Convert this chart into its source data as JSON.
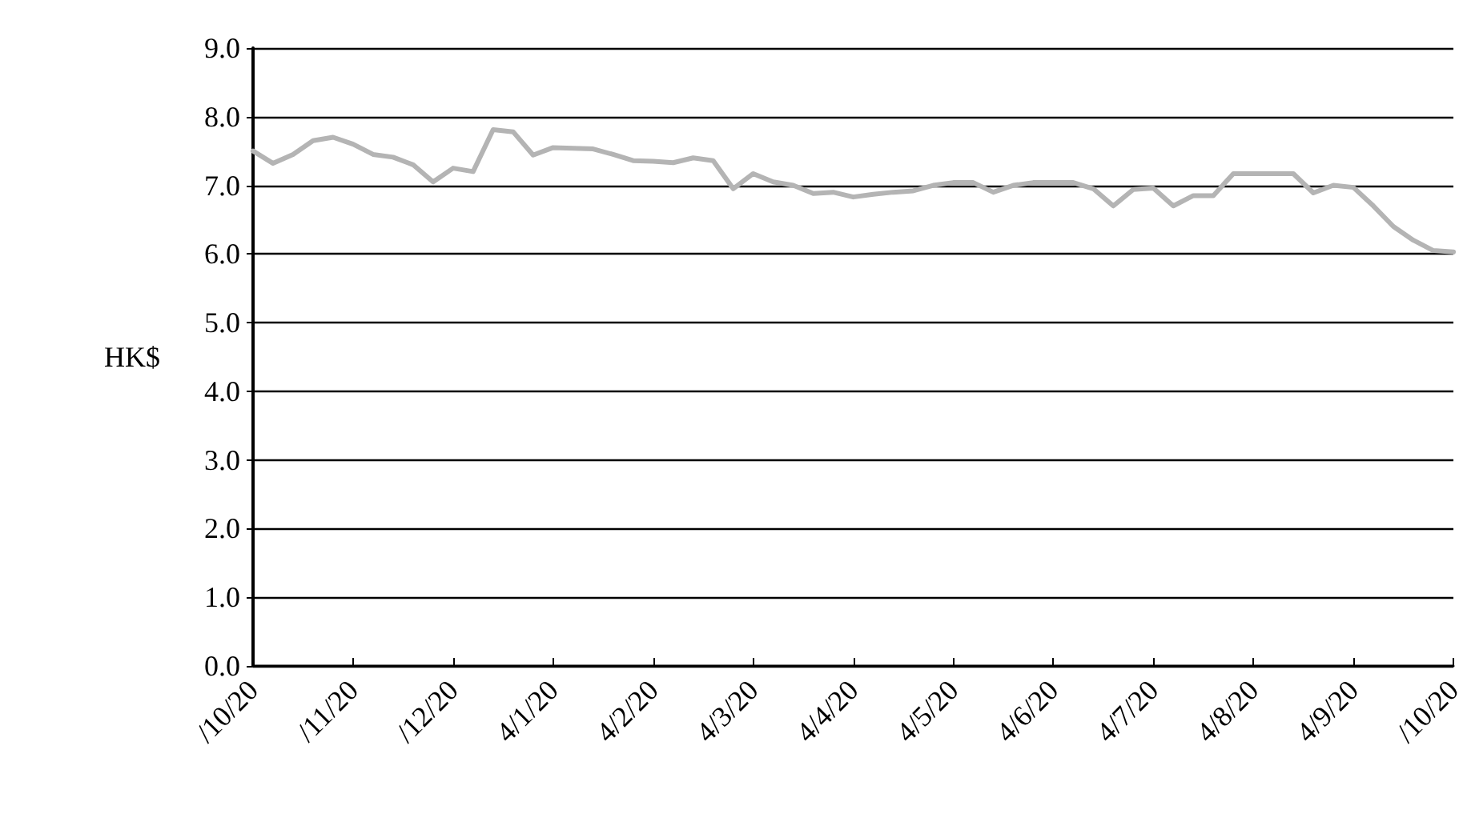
{
  "chart_data": {
    "type": "line",
    "ylabel": "HK$",
    "categories": [
      "/10/20",
      null,
      null,
      null,
      null,
      "/11/20",
      null,
      null,
      null,
      null,
      "/12/20",
      null,
      null,
      null,
      null,
      "4/1/20",
      null,
      null,
      null,
      null,
      "4/2/20",
      null,
      null,
      null,
      null,
      "4/3/20",
      null,
      null,
      null,
      null,
      "4/4/20",
      null,
      null,
      null,
      null,
      "4/5/20",
      null,
      null,
      null,
      null,
      "4/6/20",
      null,
      null,
      null,
      null,
      "4/7/20",
      null,
      null,
      null,
      null,
      "4/8/20",
      null,
      null,
      null,
      null,
      "4/9/20",
      null,
      null,
      null,
      null,
      "/10/20"
    ],
    "series": [
      {
        "color": "#b4b4b4",
        "values": [
          7.5,
          7.32,
          7.45,
          7.65,
          7.7,
          7.6,
          7.45,
          7.41,
          7.3,
          7.05,
          7.25,
          7.2,
          7.81,
          7.78,
          7.44,
          7.55,
          7.54,
          7.53,
          7.45,
          7.36,
          7.35,
          7.33,
          7.4,
          7.36,
          6.95,
          7.17,
          7.05,
          7.0,
          6.88,
          6.9,
          6.83,
          6.87,
          6.9,
          6.92,
          7.0,
          7.04,
          7.04,
          6.9,
          7.0,
          7.04,
          7.04,
          7.04,
          6.95,
          6.7,
          6.94,
          6.96,
          6.7,
          6.85,
          6.85,
          7.17,
          7.17,
          7.17,
          7.17,
          6.89,
          7.0,
          6.97,
          6.7,
          6.4,
          6.2,
          6.05,
          6.03
        ]
      }
    ],
    "ylim": [
      0,
      9
    ],
    "yticks": [
      {
        "value": 0,
        "label": "0.0"
      },
      {
        "value": 1,
        "label": "1.0"
      },
      {
        "value": 2,
        "label": "2.0"
      },
      {
        "value": 3,
        "label": "3.0"
      },
      {
        "value": 4,
        "label": "4.0"
      },
      {
        "value": 5,
        "label": "5.0"
      },
      {
        "value": 6,
        "label": "6.0"
      },
      {
        "value": 7,
        "label": "7.0"
      },
      {
        "value": 8,
        "label": "8.0"
      },
      {
        "value": 9,
        "label": "9.0"
      }
    ],
    "grid": "y",
    "marker": "none",
    "line_style": "solid"
  }
}
